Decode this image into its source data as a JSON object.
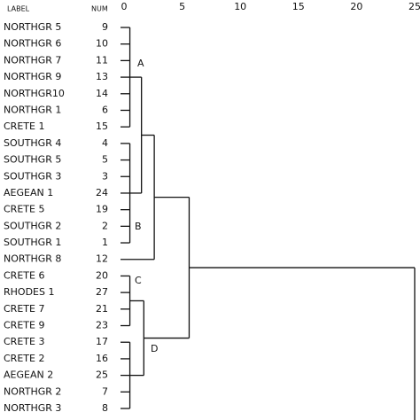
{
  "chart_data": {
    "type": "dendrogram",
    "column_headers": [
      "LABEL",
      "NUM"
    ],
    "xlim": [
      0,
      25
    ],
    "xticks": [
      0,
      5,
      10,
      15,
      20,
      25
    ],
    "leaves": [
      {
        "label": "NORTHGR 5",
        "num": 9
      },
      {
        "label": "NORTHGR 6",
        "num": 10
      },
      {
        "label": "NORTHGR 7",
        "num": 11
      },
      {
        "label": "NORTHGR 9",
        "num": 13
      },
      {
        "label": "NORTHGR10",
        "num": 14
      },
      {
        "label": "NORTHGR 1",
        "num": 6
      },
      {
        "label": "CRETE 1",
        "num": 15
      },
      {
        "label": "SOUTHGR 4",
        "num": 4
      },
      {
        "label": "SOUTHGR 5",
        "num": 5
      },
      {
        "label": "SOUTHGR 3",
        "num": 3
      },
      {
        "label": "AEGEAN 1",
        "num": 24
      },
      {
        "label": "CRETE 5",
        "num": 19
      },
      {
        "label": "SOUTHGR 2",
        "num": 2
      },
      {
        "label": "SOUTHGR 1",
        "num": 1
      },
      {
        "label": "NORTHGR 8",
        "num": 12
      },
      {
        "label": "CRETE 6",
        "num": 20
      },
      {
        "label": "RHODES 1",
        "num": 27
      },
      {
        "label": "CRETE 7",
        "num": 21
      },
      {
        "label": "CRETE 9",
        "num": 23
      },
      {
        "label": "CRETE 3",
        "num": 17
      },
      {
        "label": "CRETE 2",
        "num": 16
      },
      {
        "label": "AEGEAN 2",
        "num": 25
      },
      {
        "label": "NORTHGR 2",
        "num": 7
      },
      {
        "label": "NORTHGR 3",
        "num": 8
      }
    ],
    "cluster_labels": [
      "A",
      "B",
      "C",
      "D"
    ],
    "tree": {
      "height": 5.6,
      "children": [
        {
          "height": 2.6,
          "children": [
            {
              "height": 1.5,
              "children": [
                {
                  "height": 0.5,
                  "children": [
                    0,
                    1,
                    2,
                    3,
                    4,
                    5,
                    6
                  ]
                },
                {
                  "height": 0.5,
                  "children": [
                    7,
                    8,
                    9,
                    10,
                    11,
                    12,
                    13
                  ]
                }
              ]
            },
            14
          ]
        },
        {
          "height": 1.7,
          "children": [
            {
              "height": 0.5,
              "children": [
                15,
                16,
                17,
                18
              ]
            },
            {
              "height": 0.5,
              "children": [
                19,
                20,
                21,
                22,
                23
              ]
            }
          ]
        }
      ]
    }
  }
}
